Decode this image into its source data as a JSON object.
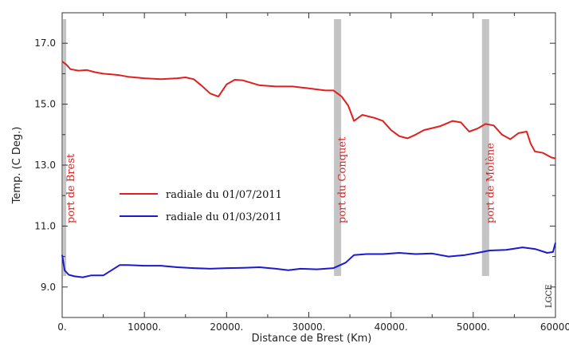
{
  "chart_data": {
    "type": "line",
    "xlabel": "Distance de Brest (Km)",
    "ylabel": "Temp. (C Deg.)",
    "xlim": [
      0,
      60000
    ],
    "ylim": [
      8.0,
      18.0
    ],
    "x_ticks": [
      0,
      10000,
      20000,
      30000,
      40000,
      50000,
      60000
    ],
    "x_tick_labels": [
      "0.",
      "10000.",
      "20000.",
      "30000.",
      "40000.",
      "50000.",
      "60000"
    ],
    "y_ticks": [
      9.0,
      11.0,
      13.0,
      15.0,
      17.0
    ],
    "y_tick_labels": [
      "9.0",
      "11.0",
      "13.0",
      "15.0",
      "17.0"
    ],
    "grid": false,
    "legend_position": "center-left",
    "series": [
      {
        "name": "radiale du 01/07/2011",
        "color": "#e02020",
        "points": [
          [
            0,
            16.4
          ],
          [
            500,
            16.3
          ],
          [
            1000,
            16.15
          ],
          [
            2000,
            16.1
          ],
          [
            3000,
            16.12
          ],
          [
            4000,
            16.05
          ],
          [
            5000,
            16.0
          ],
          [
            6000,
            15.98
          ],
          [
            7000,
            15.95
          ],
          [
            8000,
            15.9
          ],
          [
            10000,
            15.85
          ],
          [
            12000,
            15.82
          ],
          [
            14000,
            15.85
          ],
          [
            15000,
            15.88
          ],
          [
            16000,
            15.82
          ],
          [
            17000,
            15.6
          ],
          [
            18000,
            15.35
          ],
          [
            19000,
            15.25
          ],
          [
            20000,
            15.65
          ],
          [
            21000,
            15.8
          ],
          [
            22000,
            15.78
          ],
          [
            24000,
            15.62
          ],
          [
            26000,
            15.58
          ],
          [
            28000,
            15.58
          ],
          [
            30000,
            15.52
          ],
          [
            32000,
            15.45
          ],
          [
            33000,
            15.45
          ],
          [
            34000,
            15.25
          ],
          [
            34800,
            14.95
          ],
          [
            35500,
            14.45
          ],
          [
            36500,
            14.65
          ],
          [
            38000,
            14.55
          ],
          [
            39000,
            14.45
          ],
          [
            40000,
            14.15
          ],
          [
            41000,
            13.95
          ],
          [
            42000,
            13.88
          ],
          [
            43000,
            14.0
          ],
          [
            44000,
            14.15
          ],
          [
            46000,
            14.28
          ],
          [
            47500,
            14.45
          ],
          [
            48500,
            14.4
          ],
          [
            49500,
            14.1
          ],
          [
            50500,
            14.2
          ],
          [
            51500,
            14.35
          ],
          [
            52500,
            14.3
          ],
          [
            53500,
            14.0
          ],
          [
            54500,
            13.85
          ],
          [
            55500,
            14.05
          ],
          [
            56500,
            14.1
          ],
          [
            57000,
            13.7
          ],
          [
            57500,
            13.45
          ],
          [
            58500,
            13.4
          ],
          [
            59500,
            13.25
          ],
          [
            60000,
            13.22
          ]
        ]
      },
      {
        "name": "radiale du 01/03/2011",
        "color": "#1a1ad0",
        "points": [
          [
            0,
            10.05
          ],
          [
            300,
            9.55
          ],
          [
            800,
            9.4
          ],
          [
            1500,
            9.35
          ],
          [
            2500,
            9.32
          ],
          [
            3500,
            9.38
          ],
          [
            5000,
            9.38
          ],
          [
            6000,
            9.55
          ],
          [
            7000,
            9.72
          ],
          [
            8000,
            9.72
          ],
          [
            10000,
            9.7
          ],
          [
            12000,
            9.7
          ],
          [
            14000,
            9.65
          ],
          [
            16000,
            9.62
          ],
          [
            18000,
            9.6
          ],
          [
            20000,
            9.62
          ],
          [
            22000,
            9.63
          ],
          [
            24000,
            9.65
          ],
          [
            26000,
            9.6
          ],
          [
            27500,
            9.55
          ],
          [
            29000,
            9.6
          ],
          [
            31000,
            9.58
          ],
          [
            33000,
            9.62
          ],
          [
            34500,
            9.8
          ],
          [
            35500,
            10.05
          ],
          [
            37000,
            10.08
          ],
          [
            39000,
            10.08
          ],
          [
            41000,
            10.12
          ],
          [
            43000,
            10.08
          ],
          [
            45000,
            10.1
          ],
          [
            47000,
            10.0
          ],
          [
            49000,
            10.05
          ],
          [
            50500,
            10.12
          ],
          [
            52000,
            10.2
          ],
          [
            54000,
            10.22
          ],
          [
            56000,
            10.3
          ],
          [
            57500,
            10.25
          ],
          [
            59000,
            10.12
          ],
          [
            59700,
            10.15
          ],
          [
            60000,
            10.45
          ]
        ]
      }
    ],
    "ports": [
      {
        "label": "port de Brest",
        "x": 300
      },
      {
        "label": "port du Conquet",
        "x": 33500
      },
      {
        "label": "port de Molène",
        "x": 51500
      }
    ],
    "credit": "LGCE"
  }
}
